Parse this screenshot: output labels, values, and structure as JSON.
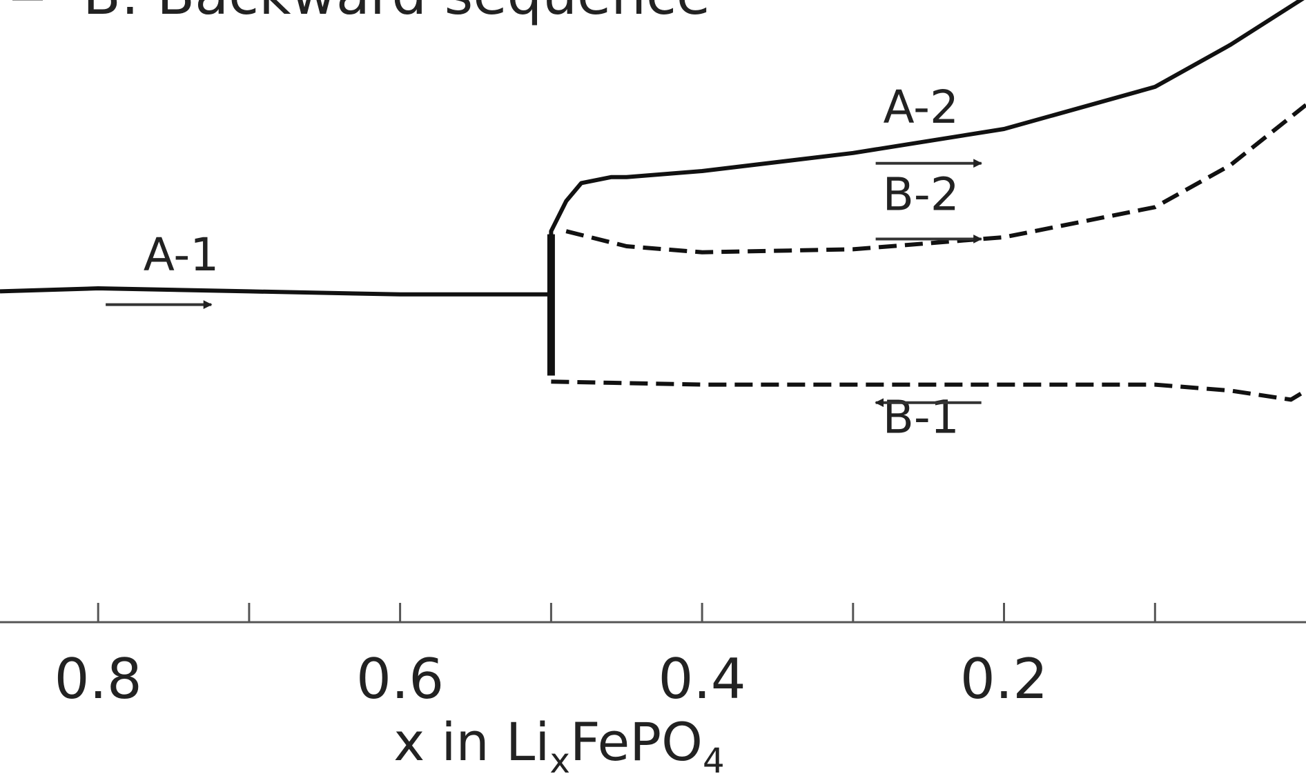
{
  "chart_data": {
    "type": "line",
    "legend_text": "B: Backward sequence",
    "xlabel": {
      "prefix": "x in Li",
      "sub1": "x",
      "mid": "FePO",
      "sub2": "4"
    },
    "xlim": [
      0.865,
      0.0
    ],
    "ylim": [
      0.0,
      1.0
    ],
    "x_reversed": true,
    "grid": false,
    "xticks": [
      {
        "value": 0.8,
        "label": "0.8"
      },
      {
        "value": 0.7,
        "label": ""
      },
      {
        "value": 0.6,
        "label": "0.6"
      },
      {
        "value": 0.5,
        "label": ""
      },
      {
        "value": 0.4,
        "label": "0.4"
      },
      {
        "value": 0.3,
        "label": ""
      },
      {
        "value": 0.2,
        "label": "0.2"
      },
      {
        "value": 0.1,
        "label": ""
      }
    ],
    "series": [
      {
        "style": "solid",
        "points": [
          [
            0.865,
            0.55
          ],
          [
            0.8,
            0.555
          ],
          [
            0.7,
            0.55
          ],
          [
            0.6,
            0.545
          ],
          [
            0.5,
            0.545
          ],
          [
            0.5,
            0.65
          ],
          [
            0.49,
            0.7
          ],
          [
            0.48,
            0.73
          ],
          [
            0.46,
            0.74
          ],
          [
            0.45,
            0.74
          ],
          [
            0.4,
            0.75
          ],
          [
            0.3,
            0.78
          ],
          [
            0.2,
            0.82
          ],
          [
            0.1,
            0.89
          ],
          [
            0.05,
            0.96
          ],
          [
            0.0,
            1.04
          ]
        ]
      },
      {
        "style": "solid",
        "points": [
          [
            0.5,
            0.645
          ],
          [
            0.5,
            0.41
          ]
        ]
      },
      {
        "style": "dashed",
        "points": [
          [
            0.49,
            0.65
          ],
          [
            0.45,
            0.625
          ],
          [
            0.4,
            0.615
          ],
          [
            0.3,
            0.62
          ],
          [
            0.2,
            0.64
          ],
          [
            0.1,
            0.69
          ],
          [
            0.05,
            0.76
          ],
          [
            0.0,
            0.86
          ]
        ]
      },
      {
        "style": "dashed",
        "points": [
          [
            0.5,
            0.4
          ],
          [
            0.4,
            0.395
          ],
          [
            0.3,
            0.395
          ],
          [
            0.2,
            0.395
          ],
          [
            0.1,
            0.395
          ],
          [
            0.05,
            0.385
          ],
          [
            0.01,
            0.37
          ],
          [
            0.0,
            0.385
          ]
        ]
      }
    ],
    "annotations": [
      {
        "label": "A-1",
        "x": 0.745,
        "y": 0.585,
        "arrow": "right",
        "arrow_from": 0.795,
        "arrow_to": 0.725,
        "arrow_y": 0.528
      },
      {
        "label": "A-2",
        "x": 0.255,
        "y": 0.83,
        "arrow": "right",
        "arrow_from": 0.285,
        "arrow_to": 0.215,
        "arrow_y": 0.763
      },
      {
        "label": "B-2",
        "x": 0.255,
        "y": 0.685,
        "arrow": "right",
        "arrow_from": 0.285,
        "arrow_to": 0.215,
        "arrow_y": 0.637
      },
      {
        "label": "B-1",
        "x": 0.255,
        "y": 0.315,
        "arrow": "left",
        "arrow_from": 0.215,
        "arrow_to": 0.285,
        "arrow_y": 0.365
      }
    ]
  }
}
